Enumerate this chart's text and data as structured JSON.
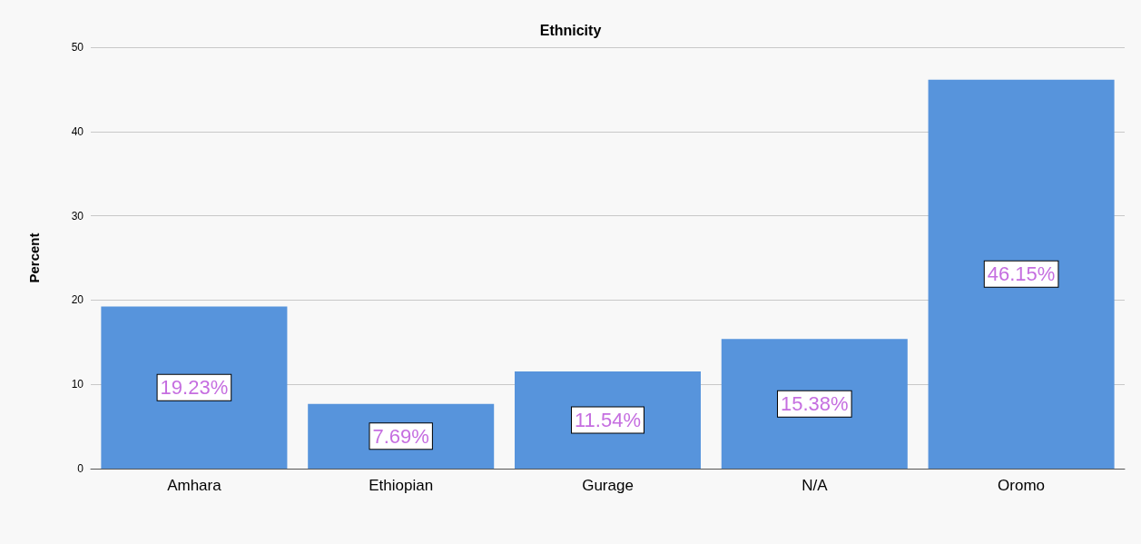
{
  "chart_data": {
    "type": "bar",
    "title": "Ethnicity",
    "ylabel": "Percent",
    "categories": [
      "Amhara",
      "Ethiopian",
      "Gurage",
      "N/A",
      "Oromo"
    ],
    "values": [
      19.23,
      7.69,
      11.54,
      15.38,
      46.15
    ],
    "value_labels": [
      "19.23%",
      "7.69%",
      "11.54%",
      "15.38%",
      "46.15%"
    ],
    "color": "#5794dc",
    "ylim": [
      0,
      50
    ],
    "yticks": [
      0,
      10,
      20,
      30,
      40,
      50
    ],
    "grid": "y"
  }
}
